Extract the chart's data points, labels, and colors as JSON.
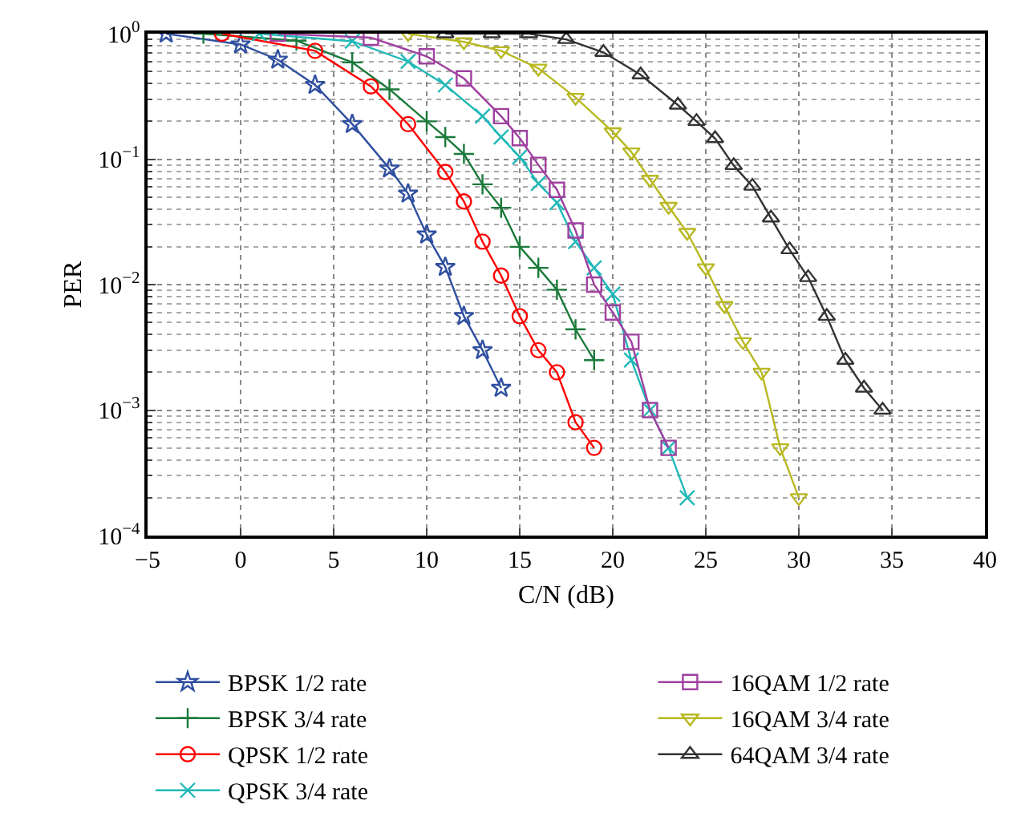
{
  "chart_data": {
    "type": "line",
    "xlabel": "C/N (dB)",
    "ylabel": "PER",
    "log": "y",
    "grid": true,
    "line_style": "solid",
    "legend": "bottom",
    "xlim": [
      -5,
      40
    ],
    "xticks": [
      {
        "value": -5,
        "label": "−5"
      },
      0,
      5,
      10,
      15,
      20,
      25,
      30,
      35,
      40
    ],
    "ylim": [
      0.0001,
      1
    ],
    "yticks": [
      {
        "value": 0.0001,
        "label": "10$^{−4}$"
      },
      {
        "value": 0.001,
        "label": "10$^{−3}$"
      },
      {
        "value": 0.01,
        "label": "10$^{−2}$"
      },
      {
        "value": 0.1,
        "label": "10$^{−1}$"
      },
      {
        "value": 1,
        "label": "10$^{0}$"
      }
    ],
    "series": [
      {
        "name": "BPSK 1/2 rate",
        "color": "#2f4fa0",
        "marker": "star",
        "x": [
          -4,
          0,
          2,
          4,
          6,
          8,
          9,
          10,
          11,
          12,
          13,
          14
        ],
        "values": [
          1.0,
          0.82,
          0.62,
          0.39,
          0.19,
          0.084,
          0.053,
          0.025,
          0.0138,
          0.0056,
          0.003,
          0.0015
        ]
      },
      {
        "name": "BPSK 3/4 rate",
        "color": "#1a7a3a",
        "marker": "cross",
        "x": [
          -2,
          3,
          6,
          8,
          10,
          11,
          12,
          13,
          14,
          15,
          16,
          17,
          18,
          19
        ],
        "values": [
          1.0,
          0.88,
          0.59,
          0.36,
          0.2,
          0.15,
          0.11,
          0.063,
          0.041,
          0.02,
          0.0136,
          0.0091,
          0.0044,
          0.0025
        ]
      },
      {
        "name": "QPSK 1/2 rate",
        "color": "#ff0000",
        "marker": "circle",
        "x": [
          -1,
          4,
          7,
          9,
          11,
          12,
          13,
          14,
          15,
          16,
          17,
          18,
          19
        ],
        "values": [
          1.0,
          0.73,
          0.38,
          0.19,
          0.079,
          0.046,
          0.022,
          0.0118,
          0.0056,
          0.003,
          0.002,
          0.0008,
          0.0005
        ]
      },
      {
        "name": "QPSK 3/4 rate",
        "color": "#20b8b8",
        "marker": "x",
        "x": [
          1,
          6,
          9,
          11,
          13,
          14,
          15,
          16,
          17,
          18,
          19,
          20,
          21,
          22,
          23,
          24
        ],
        "values": [
          1.0,
          0.87,
          0.6,
          0.39,
          0.22,
          0.15,
          0.104,
          0.064,
          0.045,
          0.022,
          0.0136,
          0.0084,
          0.0025,
          0.001,
          0.0005,
          0.0002
        ]
      },
      {
        "name": "16QAM 1/2 rate",
        "color": "#a040a0",
        "marker": "square",
        "x": [
          2,
          7,
          10,
          12,
          14,
          15,
          16,
          17,
          18,
          19,
          20,
          21,
          22,
          23
        ],
        "values": [
          1.0,
          0.93,
          0.66,
          0.44,
          0.22,
          0.147,
          0.09,
          0.057,
          0.027,
          0.01,
          0.006,
          0.0035,
          0.001,
          0.0005
        ]
      },
      {
        "name": "16QAM 3/4 rate",
        "color": "#b8b820",
        "marker": "triangle-down",
        "x": [
          9,
          12,
          14,
          16,
          18,
          20,
          21,
          22,
          23,
          24,
          25,
          26,
          27,
          28,
          29,
          30
        ],
        "values": [
          1.0,
          0.86,
          0.73,
          0.53,
          0.31,
          0.165,
          0.114,
          0.069,
          0.042,
          0.026,
          0.0136,
          0.0068,
          0.0035,
          0.002,
          0.0005,
          0.0002
        ]
      },
      {
        "name": "64QAM 3/4 rate",
        "color": "#333333",
        "marker": "triangle",
        "x": [
          11,
          13.5,
          15.5,
          17.5,
          19.5,
          21.5,
          23.5,
          24.5,
          25.5,
          26.5,
          27.5,
          28.5,
          29.5,
          30.5,
          31.5,
          32.5,
          33.5,
          34.5
        ],
        "values": [
          1.0,
          1.0,
          1.0,
          0.9,
          0.71,
          0.47,
          0.27,
          0.2,
          0.146,
          0.089,
          0.061,
          0.034,
          0.019,
          0.0114,
          0.0056,
          0.0025,
          0.0015,
          0.001
        ]
      }
    ]
  }
}
